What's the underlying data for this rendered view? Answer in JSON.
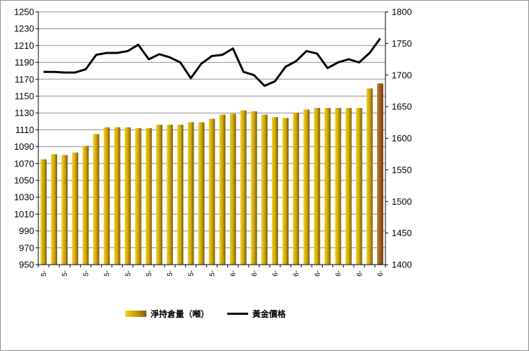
{
  "colors": {
    "bar": "#c9a20f",
    "bar_last": "#9c5a1c",
    "line": "#000000",
    "grid": "#8c8c8c"
  },
  "legend": {
    "bar_label": "淨持倉量（噸）",
    "line_label": "黃金價格"
  },
  "chart_data": {
    "type": "bar",
    "categories": [
      "5-",
      "5-",
      "5-",
      "5-",
      "5-",
      "5-",
      "5-",
      "5-",
      "5-",
      "5-",
      "5-",
      "5-",
      "5-",
      "5-",
      "5-",
      "5-",
      "5-",
      "5-",
      "5-",
      "6-",
      "6-",
      "6-",
      "6-",
      "6-",
      "6-",
      "6-",
      "6-",
      "6-",
      "6-",
      "6-",
      "6-",
      "6-",
      "6-"
    ],
    "x_tick_labels": [
      "5-",
      "5-",
      "5-",
      "5-",
      "5-",
      "5-",
      "5-",
      "5-",
      "5-",
      "6-",
      "6-",
      "6-",
      "6-",
      "6-",
      "6-",
      "6-",
      "6-"
    ],
    "series": [
      {
        "name": "淨持倉量（噸）",
        "axis": "left",
        "type": "bar",
        "values": [
          1075,
          1081,
          1080,
          1083,
          1091,
          1105,
          1113,
          1113,
          1113,
          1112,
          1112,
          1116,
          1116,
          1116,
          1119,
          1119,
          1123,
          1128,
          1129,
          1133,
          1132,
          1128,
          1125,
          1124,
          1130,
          1134,
          1136,
          1136,
          1136,
          1136,
          1136,
          1159,
          1165
        ]
      },
      {
        "name": "黃金價格",
        "axis": "right",
        "type": "line",
        "values": [
          1705,
          1705,
          1704,
          1704,
          1709,
          1732,
          1735,
          1735,
          1738,
          1748,
          1725,
          1733,
          1728,
          1720,
          1695,
          1718,
          1730,
          1732,
          1742,
          1705,
          1700,
          1683,
          1690,
          1713,
          1722,
          1738,
          1734,
          1711,
          1720,
          1725,
          1720,
          1735,
          1758
        ]
      }
    ],
    "y_left": {
      "min": 950,
      "max": 1250,
      "step": 20,
      "ticks": [
        "950",
        "970",
        "990",
        "1010",
        "1030",
        "1050",
        "1070",
        "1090",
        "1110",
        "1130",
        "1150",
        "1170",
        "1190",
        "1210",
        "1230",
        "1250"
      ]
    },
    "y_right": {
      "min": 1400,
      "max": 1800,
      "step": 50,
      "ticks": [
        "1400",
        "1450",
        "1500",
        "1550",
        "1600",
        "1650",
        "1700",
        "1750",
        "1800"
      ]
    },
    "grid": true,
    "legend_position": "bottom"
  }
}
